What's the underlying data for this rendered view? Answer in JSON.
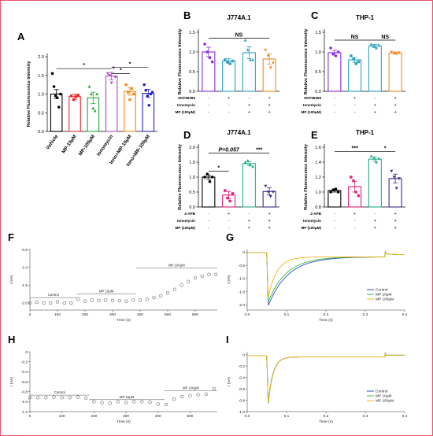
{
  "chart_data": [
    {
      "id": "A",
      "type": "bar",
      "letter": "A",
      "ylabel": "Relative Fluorescence Intensity",
      "ylim": [
        0,
        2.0
      ],
      "yticks": [
        "0.0",
        "0.5",
        "1.0",
        "1.5",
        "2.0"
      ],
      "categories": [
        "Vehicle",
        "MP-10μM",
        "MP-100μM",
        "Ionomycin",
        "Iono+MP-10μM",
        "Iono+MP-100μM"
      ],
      "colors": [
        "#000000",
        "#e8242b",
        "#22a538",
        "#b045c4",
        "#f28a1c",
        "#2323c8"
      ],
      "values": [
        1.0,
        0.93,
        0.9,
        1.48,
        1.07,
        1.02
      ],
      "errors": [
        0.12,
        0.07,
        0.15,
        0.1,
        0.1,
        0.11
      ],
      "points": [
        [
          1.55,
          1.2,
          0.95,
          0.9,
          0.65,
          1.0
        ],
        [
          0.95,
          0.85,
          0.93,
          0.97
        ],
        [
          1.2,
          1.0,
          0.62,
          0.55,
          1.0
        ],
        [
          1.55,
          1.5,
          1.3,
          1.7,
          1.45
        ],
        [
          1.25,
          1.05,
          0.85,
          1.15,
          1.0
        ],
        [
          1.25,
          1.1,
          0.95,
          0.7,
          1.0,
          1.05
        ]
      ],
      "sig": [
        {
          "a": 0,
          "b": 3,
          "y": 1.68,
          "label": "*"
        },
        {
          "a": 3,
          "b": 4,
          "y": 1.55,
          "label": "*"
        },
        {
          "a": 3,
          "b": 5,
          "y": 1.72,
          "label": "*"
        }
      ]
    },
    {
      "id": "B",
      "type": "bar",
      "letter": "B",
      "title": "J774A.1",
      "ylabel": "Relative Fluorescence Intensity",
      "ylim": [
        0,
        1.5
      ],
      "yticks": [
        "0.0",
        "0.5",
        "1.0",
        "1.5"
      ],
      "colors": [
        "#8a2be2",
        "#2aa1c0",
        "#2aa1c0",
        "#f28a1c"
      ],
      "values": [
        1.0,
        0.77,
        0.98,
        0.82
      ],
      "errors": [
        0.12,
        0.06,
        0.15,
        0.13
      ],
      "points": [
        [
          1.2,
          1.0,
          0.85,
          0.75
        ],
        [
          0.8,
          0.75,
          0.7,
          0.77
        ],
        [
          1.3,
          1.05,
          0.8,
          0.8
        ],
        [
          1.05,
          0.9,
          0.6,
          0.72
        ]
      ],
      "sig": [
        {
          "a": 0,
          "b": 3,
          "y": 1.35,
          "label": "NS"
        }
      ],
      "rows": [
        {
          "label": "SKF96365",
          "signs": [
            "-",
            "+",
            "-",
            "+"
          ]
        },
        {
          "label": "Ionomycin",
          "signs": [
            "-",
            "-",
            "+",
            "+"
          ]
        },
        {
          "label": "MP (100μM)",
          "signs": [
            "-",
            "-",
            "+",
            "+"
          ]
        }
      ]
    },
    {
      "id": "C",
      "type": "bar",
      "letter": "C",
      "title": "THP-1",
      "ylabel": "Relative Fluorescence Intensity",
      "ylim": [
        0,
        1.5
      ],
      "yticks": [
        "0.0",
        "0.5",
        "1.0",
        "1.5"
      ],
      "colors": [
        "#8a2be2",
        "#2aa1c0",
        "#2aa1c0",
        "#f28a1c"
      ],
      "values": [
        0.98,
        0.8,
        1.15,
        0.97
      ],
      "errors": [
        0.06,
        0.06,
        0.04,
        0.03
      ],
      "points": [
        [
          1.1,
          0.95,
          0.9,
          1.0
        ],
        [
          0.9,
          0.82,
          0.7,
          0.75
        ],
        [
          1.2,
          1.15,
          1.1,
          1.18
        ],
        [
          1.0,
          0.97,
          0.95,
          0.98
        ]
      ],
      "sig": [
        {
          "a": 0,
          "b": 2,
          "y": 1.3,
          "label": "NS"
        },
        {
          "a": 2,
          "b": 3,
          "y": 1.3,
          "label": "NS"
        }
      ],
      "rows": [
        {
          "label": "SKF96365",
          "signs": [
            "-",
            "+",
            "-",
            "+"
          ]
        },
        {
          "label": "Ionomycin",
          "signs": [
            "-",
            "-",
            "+",
            "+"
          ]
        },
        {
          "label": "MP (100μM)",
          "signs": [
            "-",
            "-",
            "+",
            "+"
          ]
        }
      ]
    },
    {
      "id": "D",
      "type": "bar",
      "letter": "D",
      "title": "J774A.1",
      "ylabel": "Relative Fluorescence Intensity",
      "ylim": [
        0,
        2.0
      ],
      "yticks": [
        "0.0",
        "0.5",
        "1.0",
        "1.5",
        "2.0"
      ],
      "colors": [
        "#000000",
        "#e0207a",
        "#1fae8a",
        "#3b2a8f"
      ],
      "values": [
        1.0,
        0.4,
        1.45,
        0.52
      ],
      "errors": [
        0.07,
        0.12,
        0.06,
        0.12
      ],
      "points": [
        [
          1.0,
          1.1,
          0.85,
          1.0
        ],
        [
          0.55,
          0.3,
          0.2,
          0.45
        ],
        [
          1.5,
          1.55,
          1.4,
          1.35
        ],
        [
          0.7,
          0.5,
          0.35,
          0.5
        ]
      ],
      "sig": [
        {
          "a": 0,
          "b": 1,
          "y": 1.2,
          "label": "*"
        },
        {
          "a": 0,
          "b": 2,
          "y": 1.8,
          "label": "P=0.057"
        },
        {
          "a": 2,
          "b": 3,
          "y": 1.8,
          "label": "***"
        }
      ],
      "rows": [
        {
          "label": "2-APB",
          "signs": [
            "-",
            "+",
            "-",
            "+"
          ]
        },
        {
          "label": "Ionomycin",
          "signs": [
            "-",
            "-",
            "+",
            "+"
          ]
        },
        {
          "label": "MP (100μM)",
          "signs": [
            "-",
            "-",
            "+",
            "+"
          ]
        }
      ]
    },
    {
      "id": "E",
      "type": "bar",
      "letter": "E",
      "title": "THP-1",
      "ylabel": "Relative Fluorescence Intensity",
      "ylim": [
        0.8,
        1.6
      ],
      "yticks": [
        "0.8",
        "1.0",
        "1.2",
        "1.4",
        "1.6"
      ],
      "colors": [
        "#000000",
        "#e0207a",
        "#1fae8a",
        "#3b2a8f"
      ],
      "values": [
        1.02,
        1.07,
        1.44,
        1.18
      ],
      "errors": [
        0.02,
        0.07,
        0.03,
        0.06
      ],
      "points": [
        [
          1.0,
          1.03,
          1.04,
          1.0
        ],
        [
          1.2,
          1.15,
          1.0,
          0.95
        ],
        [
          1.48,
          1.45,
          1.4,
          1.45
        ],
        [
          1.28,
          1.2,
          1.05,
          1.18
        ]
      ],
      "sig": [
        {
          "a": 0,
          "b": 2,
          "y": 1.54,
          "label": "***"
        },
        {
          "a": 2,
          "b": 3,
          "y": 1.54,
          "label": "*"
        }
      ],
      "rows": [
        {
          "label": "2-APB",
          "signs": [
            "-",
            "+",
            "-",
            "+"
          ]
        },
        {
          "label": "Ionomycin",
          "signs": [
            "-",
            "-",
            "+",
            "+"
          ]
        },
        {
          "label": "MP (100μM)",
          "signs": [
            "-",
            "-",
            "+",
            "+"
          ]
        }
      ]
    },
    {
      "id": "F",
      "type": "scatter",
      "letter": "F",
      "xlabel": "Time (s)",
      "ylabel": "I (nA)",
      "xlim": [
        0,
        680
      ],
      "ylim": [
        -2.2,
        -0.5
      ],
      "xticks": [
        "0",
        "100",
        "200",
        "300",
        "400",
        "500",
        "600"
      ],
      "yticks": [
        "-2.0",
        "-1.5",
        "-1.0",
        "-0.5"
      ],
      "x": [
        0,
        25,
        50,
        75,
        100,
        125,
        150,
        175,
        200,
        225,
        250,
        275,
        300,
        325,
        350,
        375,
        400,
        425,
        450,
        475,
        500,
        525,
        550,
        575,
        600,
        625,
        650,
        675
      ],
      "y": [
        -2.0,
        -1.98,
        -2.0,
        -2.0,
        -1.97,
        -2.0,
        -2.0,
        -1.9,
        -1.95,
        -1.92,
        -1.93,
        -1.92,
        -1.93,
        -1.94,
        -1.95,
        -1.92,
        -1.92,
        -1.9,
        -1.85,
        -1.8,
        -1.72,
        -1.62,
        -1.5,
        -1.4,
        -1.3,
        -1.25,
        -1.2,
        -1.2
      ],
      "segments": [
        {
          "label": "Control",
          "x0": 0,
          "x1": 170,
          "y": -1.85
        },
        {
          "label": "MP 10μM",
          "x0": 170,
          "x1": 385,
          "y": -1.75
        },
        {
          "label": "MP 100μM",
          "x0": 385,
          "x1": 680,
          "y": -1.02
        }
      ]
    },
    {
      "id": "G",
      "type": "line",
      "letter": "G",
      "xlabel": "Time (s)",
      "ylabel": "I (nA)",
      "xlim": [
        0,
        0.4
      ],
      "ylim": [
        -2.2,
        0.1
      ],
      "xticks": [
        "0.0",
        "0.1",
        "0.2",
        "0.3",
        "0.4"
      ],
      "yticks": [
        "0",
        "-0.5",
        "-1.0",
        "-1.5",
        "-2.0"
      ],
      "series": [
        {
          "name": "Control",
          "color": "#2b4bd6",
          "peak": -2.05,
          "tau": 0.05
        },
        {
          "name": "MP 10μM",
          "color": "#3cbf3c",
          "peak": -1.92,
          "tau": 0.045
        },
        {
          "name": "MP 100μM",
          "color": "#f2b418",
          "peak": -1.75,
          "tau": 0.022
        }
      ]
    },
    {
      "id": "H",
      "type": "scatter",
      "letter": "H",
      "xlabel": "Time (s)",
      "ylabel": "I (nA)",
      "xlim": [
        0,
        585
      ],
      "ylim": [
        -1.2,
        0
      ],
      "xticks": [
        "0",
        "100",
        "200",
        "300",
        "400",
        "500"
      ],
      "yticks": [
        "-1.2",
        "-1.0",
        "-0.8",
        "-0.6",
        "-0.4",
        "-0.2",
        "0"
      ],
      "x": [
        0,
        25,
        50,
        75,
        100,
        125,
        150,
        175,
        200,
        225,
        250,
        275,
        300,
        325,
        350,
        375,
        400,
        425,
        450,
        475,
        500,
        525,
        550,
        575
      ],
      "y": [
        -0.92,
        -0.92,
        -0.92,
        -0.91,
        -0.92,
        -0.92,
        -0.91,
        -0.93,
        -1.0,
        -1.02,
        -1.03,
        -1.0,
        -1.02,
        -1.0,
        -1.0,
        -1.01,
        -1.05,
        -1.06,
        -0.95,
        -0.9,
        -0.88,
        -0.86,
        -0.85,
        -0.74
      ],
      "segments": [
        {
          "label": "Control",
          "x0": 0,
          "x1": 185,
          "y": -0.87
        },
        {
          "label": "MP 10μM",
          "x0": 185,
          "x1": 420,
          "y": -0.96
        },
        {
          "label": "MP 100μM",
          "x0": 420,
          "x1": 585,
          "y": -0.78
        }
      ]
    },
    {
      "id": "I",
      "type": "line",
      "letter": "I",
      "xlabel": "Time (s)",
      "ylabel": "I (nA)",
      "xlim": [
        0,
        0.4
      ],
      "ylim": [
        -1.0,
        0.05
      ],
      "xticks": [
        "0.0",
        "0.1",
        "0.2",
        "0.3",
        "0.4"
      ],
      "yticks": [
        "0",
        "-0.2",
        "-0.4",
        "-0.6",
        "-0.8",
        "-1.0"
      ],
      "series": [
        {
          "name": "Control",
          "color": "#2b4bd6",
          "peak": -0.88,
          "tau": 0.012
        },
        {
          "name": "MP 10μM",
          "color": "#3cbf3c",
          "peak": -0.92,
          "tau": 0.012
        },
        {
          "name": "MP 100μM",
          "color": "#f2b418",
          "peak": -0.9,
          "tau": 0.012
        }
      ]
    }
  ]
}
